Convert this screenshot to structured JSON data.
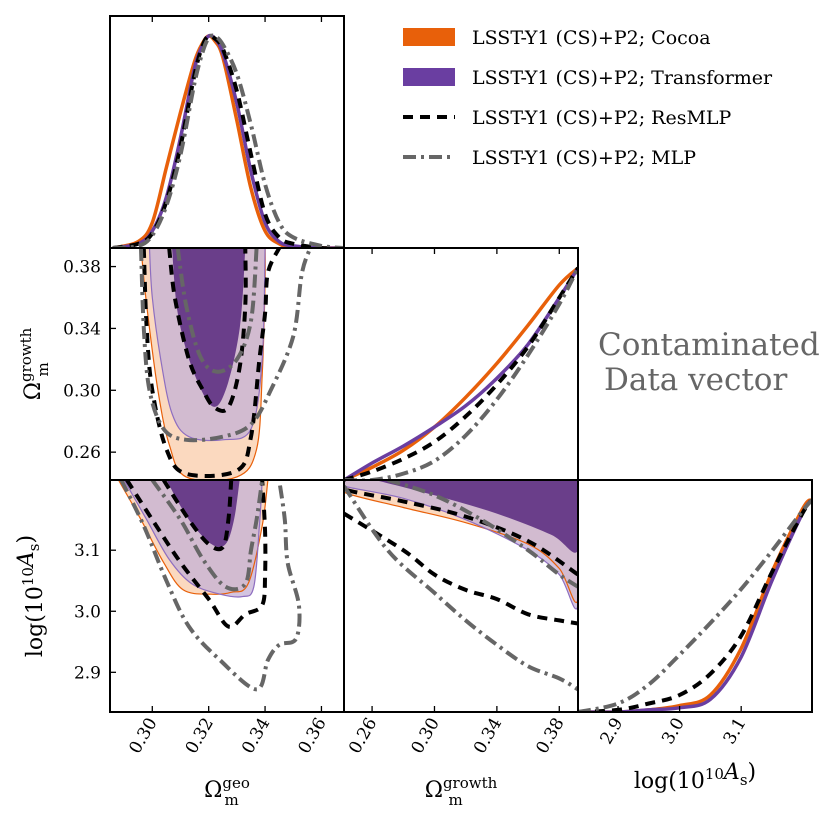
{
  "chart_data": {
    "type": "corner",
    "title": "",
    "annotation": [
      "Contaminated",
      "Data vector"
    ],
    "parameters": [
      {
        "key": "om_geo",
        "label_base": "Ω",
        "label_sub": "m",
        "label_sup": "geo",
        "range": [
          0.285,
          0.368
        ],
        "ticks": [
          "0.30",
          "0.32",
          "0.34",
          "0.36"
        ]
      },
      {
        "key": "om_growth",
        "label_base": "Ω",
        "label_sub": "m",
        "label_sup": "growth",
        "range": [
          0.242,
          0.392
        ],
        "ticks": [
          "0.26",
          "0.30",
          "0.34",
          "0.38"
        ]
      },
      {
        "key": "logAs",
        "label_text": "log(10",
        "label_sup": "10",
        "label_tail": "A",
        "label_sub": "s",
        "label_close": ")",
        "range": [
          2.835,
          3.215
        ],
        "ticks": [
          "2.9",
          "3.0",
          "3.1"
        ]
      }
    ],
    "legend": [
      {
        "name": "LSST-Y1 (CS)+P2; Cocoa",
        "color": "#e8600a",
        "style": "filled"
      },
      {
        "name": "LSST-Y1 (CS)+P2; Transformer",
        "color": "#6a3ea1",
        "style": "filled"
      },
      {
        "name": "LSST-Y1 (CS)+P2; ResMLP",
        "color": "#000000",
        "style": "dashed"
      },
      {
        "name": "LSST-Y1 (CS)+P2; MLP",
        "color": "#666666",
        "style": "dashdot"
      }
    ],
    "marginals": {
      "om_geo": {
        "x": [
          0.286,
          0.295,
          0.3,
          0.305,
          0.31,
          0.315,
          0.318,
          0.32,
          0.322,
          0.325,
          0.33,
          0.335,
          0.34,
          0.345,
          0.35,
          0.36,
          0.368
        ],
        "Cocoa": [
          0.0,
          0.03,
          0.12,
          0.38,
          0.64,
          0.88,
          0.97,
          1.0,
          0.98,
          0.9,
          0.6,
          0.28,
          0.08,
          0.02,
          0.0,
          0.0,
          0.0
        ],
        "Transformer": [
          0.0,
          0.02,
          0.08,
          0.24,
          0.52,
          0.85,
          0.96,
          1.0,
          0.99,
          0.92,
          0.68,
          0.36,
          0.12,
          0.03,
          0.01,
          0.0,
          0.0
        ],
        "ResMLP": [
          0.0,
          0.02,
          0.07,
          0.22,
          0.48,
          0.82,
          0.96,
          1.0,
          0.99,
          0.94,
          0.74,
          0.44,
          0.16,
          0.05,
          0.02,
          0.0,
          0.0
        ],
        "MLP": [
          0.0,
          0.01,
          0.06,
          0.2,
          0.44,
          0.78,
          0.93,
          0.99,
          1.0,
          0.96,
          0.82,
          0.58,
          0.3,
          0.12,
          0.05,
          0.01,
          0.0
        ]
      },
      "om_growth": {
        "x": [
          0.242,
          0.26,
          0.28,
          0.3,
          0.32,
          0.34,
          0.36,
          0.38,
          0.392
        ],
        "Cocoa": [
          0.0,
          0.06,
          0.14,
          0.25,
          0.39,
          0.55,
          0.73,
          0.92,
          1.0
        ],
        "Transformer": [
          0.0,
          0.08,
          0.16,
          0.25,
          0.35,
          0.48,
          0.64,
          0.86,
          1.0
        ],
        "ResMLP": [
          0.0,
          0.04,
          0.1,
          0.18,
          0.3,
          0.45,
          0.63,
          0.86,
          1.0
        ],
        "MLP": [
          0.0,
          0.0,
          0.03,
          0.09,
          0.21,
          0.38,
          0.59,
          0.83,
          1.0
        ]
      },
      "logAs": {
        "x": [
          2.835,
          2.9,
          2.95,
          3.0,
          3.05,
          3.1,
          3.15,
          3.2,
          3.215
        ],
        "Cocoa": [
          0.0,
          0.0,
          0.01,
          0.03,
          0.08,
          0.3,
          0.66,
          0.96,
          1.0
        ],
        "Transformer": [
          0.0,
          0.0,
          0.01,
          0.02,
          0.06,
          0.26,
          0.62,
          0.94,
          1.0
        ],
        "ResMLP": [
          0.0,
          0.01,
          0.04,
          0.08,
          0.18,
          0.36,
          0.66,
          0.94,
          1.0
        ],
        "MLP": [
          0.0,
          0.04,
          0.13,
          0.27,
          0.42,
          0.58,
          0.76,
          0.95,
          1.0
        ]
      }
    },
    "contours_2d": {
      "om_growth_vs_om_geo": {
        "Cocoa_outer": [
          [
            0.296,
            0.392
          ],
          [
            0.298,
            0.355
          ],
          [
            0.302,
            0.3
          ],
          [
            0.306,
            0.265
          ],
          [
            0.312,
            0.244
          ],
          [
            0.33,
            0.244
          ],
          [
            0.337,
            0.262
          ],
          [
            0.339,
            0.31
          ],
          [
            0.34,
            0.37
          ],
          [
            0.34,
            0.392
          ]
        ],
        "Transformer_outer": [
          [
            0.299,
            0.392
          ],
          [
            0.3,
            0.36
          ],
          [
            0.303,
            0.32
          ],
          [
            0.307,
            0.285
          ],
          [
            0.313,
            0.27
          ],
          [
            0.325,
            0.268
          ],
          [
            0.335,
            0.275
          ],
          [
            0.339,
            0.32
          ],
          [
            0.34,
            0.392
          ]
        ],
        "Transformer_inner": [
          [
            0.307,
            0.392
          ],
          [
            0.309,
            0.35
          ],
          [
            0.314,
            0.315
          ],
          [
            0.321,
            0.29
          ],
          [
            0.326,
            0.3
          ],
          [
            0.331,
            0.34
          ],
          [
            0.333,
            0.392
          ]
        ],
        "ResMLP_inner": [
          [
            0.306,
            0.392
          ],
          [
            0.308,
            0.36
          ],
          [
            0.313,
            0.32
          ],
          [
            0.318,
            0.3
          ],
          [
            0.322,
            0.289
          ],
          [
            0.327,
            0.289
          ],
          [
            0.331,
            0.315
          ],
          [
            0.333,
            0.355
          ],
          [
            0.333,
            0.392
          ]
        ],
        "ResMLP_outer": [
          [
            0.297,
            0.392
          ],
          [
            0.298,
            0.34
          ],
          [
            0.3,
            0.3
          ],
          [
            0.305,
            0.262
          ],
          [
            0.312,
            0.246
          ],
          [
            0.33,
            0.248
          ],
          [
            0.335,
            0.27
          ],
          [
            0.338,
            0.32
          ],
          [
            0.34,
            0.35
          ],
          [
            0.341,
            0.376
          ],
          [
            0.345,
            0.392
          ]
        ],
        "MLP_inner": [
          [
            0.309,
            0.392
          ],
          [
            0.312,
            0.355
          ],
          [
            0.317,
            0.322
          ],
          [
            0.323,
            0.312
          ],
          [
            0.33,
            0.32
          ],
          [
            0.335,
            0.345
          ],
          [
            0.337,
            0.392
          ]
        ],
        "MLP_outer": [
          [
            0.296,
            0.392
          ],
          [
            0.297,
            0.34
          ],
          [
            0.299,
            0.3
          ],
          [
            0.304,
            0.275
          ],
          [
            0.312,
            0.268
          ],
          [
            0.325,
            0.27
          ],
          [
            0.335,
            0.278
          ],
          [
            0.342,
            0.3
          ],
          [
            0.35,
            0.335
          ],
          [
            0.353,
            0.375
          ],
          [
            0.356,
            0.392
          ]
        ]
      },
      "logAs_vs_om_geo": {
        "Cocoa_outer": [
          [
            0.288,
            3.215
          ],
          [
            0.296,
            3.15
          ],
          [
            0.304,
            3.08
          ],
          [
            0.311,
            3.035
          ],
          [
            0.321,
            3.028
          ],
          [
            0.328,
            3.031
          ],
          [
            0.334,
            3.045
          ],
          [
            0.339,
            3.14
          ],
          [
            0.341,
            3.215
          ]
        ],
        "Transformer_outer": [
          [
            0.29,
            3.215
          ],
          [
            0.298,
            3.15
          ],
          [
            0.306,
            3.085
          ],
          [
            0.314,
            3.045
          ],
          [
            0.324,
            3.028
          ],
          [
            0.332,
            3.024
          ],
          [
            0.336,
            3.04
          ],
          [
            0.338,
            3.14
          ],
          [
            0.339,
            3.215
          ]
        ],
        "Transformer_inner": [
          [
            0.305,
            3.215
          ],
          [
            0.313,
            3.15
          ],
          [
            0.321,
            3.11
          ],
          [
            0.326,
            3.11
          ],
          [
            0.329,
            3.15
          ],
          [
            0.331,
            3.215
          ]
        ],
        "ResMLP_inner": [
          [
            0.304,
            3.215
          ],
          [
            0.313,
            3.15
          ],
          [
            0.32,
            3.11
          ],
          [
            0.325,
            3.105
          ],
          [
            0.327,
            3.15
          ],
          [
            0.328,
            3.215
          ]
        ],
        "ResMLP_outer": [
          [
            0.291,
            3.215
          ],
          [
            0.3,
            3.15
          ],
          [
            0.31,
            3.08
          ],
          [
            0.32,
            3.02
          ],
          [
            0.327,
            2.975
          ],
          [
            0.333,
            2.995
          ],
          [
            0.339,
            3.01
          ],
          [
            0.34,
            3.06
          ],
          [
            0.34,
            3.13
          ],
          [
            0.339,
            3.215
          ]
        ],
        "MLP_inner": [
          [
            0.3,
            3.215
          ],
          [
            0.31,
            3.15
          ],
          [
            0.318,
            3.085
          ],
          [
            0.326,
            3.04
          ],
          [
            0.333,
            3.045
          ],
          [
            0.335,
            3.1
          ],
          [
            0.337,
            3.15
          ],
          [
            0.339,
            3.215
          ]
        ],
        "MLP_outer": [
          [
            0.289,
            3.215
          ],
          [
            0.297,
            3.14
          ],
          [
            0.305,
            3.05
          ],
          [
            0.313,
            2.975
          ],
          [
            0.324,
            2.92
          ],
          [
            0.337,
            2.872
          ],
          [
            0.341,
            2.92
          ],
          [
            0.345,
            2.945
          ],
          [
            0.351,
            2.955
          ],
          [
            0.352,
            3.01
          ],
          [
            0.348,
            3.08
          ],
          [
            0.347,
            3.15
          ],
          [
            0.345,
            3.215
          ]
        ]
      },
      "logAs_vs_om_growth": {
        "Cocoa_outer": [
          [
            0.242,
            3.215
          ],
          [
            0.242,
            3.195
          ],
          [
            0.28,
            3.17
          ],
          [
            0.32,
            3.145
          ],
          [
            0.36,
            3.11
          ],
          [
            0.38,
            3.07
          ],
          [
            0.392,
            3.02
          ],
          [
            0.392,
            3.215
          ]
        ],
        "Transformer_outer": [
          [
            0.242,
            3.215
          ],
          [
            0.242,
            3.205
          ],
          [
            0.28,
            3.185
          ],
          [
            0.32,
            3.15
          ],
          [
            0.36,
            3.1
          ],
          [
            0.38,
            3.06
          ],
          [
            0.392,
            3.01
          ],
          [
            0.392,
            3.215
          ]
        ],
        "Transformer_inner": [
          [
            0.262,
            3.215
          ],
          [
            0.3,
            3.19
          ],
          [
            0.34,
            3.16
          ],
          [
            0.375,
            3.125
          ],
          [
            0.392,
            3.1
          ],
          [
            0.392,
            3.215
          ]
        ],
        "ResMLP_inner": [
          [
            0.242,
            3.215
          ],
          [
            0.242,
            3.2
          ],
          [
            0.28,
            3.18
          ],
          [
            0.32,
            3.155
          ],
          [
            0.36,
            3.115
          ],
          [
            0.392,
            3.06
          ]
        ],
        "ResMLP_outer": [
          [
            0.242,
            3.16
          ],
          [
            0.28,
            3.1
          ],
          [
            0.3,
            3.06
          ],
          [
            0.32,
            3.035
          ],
          [
            0.34,
            3.02
          ],
          [
            0.36,
            2.995
          ],
          [
            0.38,
            2.985
          ],
          [
            0.392,
            2.98
          ]
        ],
        "MLP_inner": [
          [
            0.27,
            3.215
          ],
          [
            0.3,
            3.19
          ],
          [
            0.33,
            3.15
          ],
          [
            0.36,
            3.1
          ],
          [
            0.38,
            3.06
          ],
          [
            0.392,
            3.04
          ]
        ],
        "MLP_outer": [
          [
            0.242,
            3.205
          ],
          [
            0.27,
            3.1
          ],
          [
            0.3,
            3.03
          ],
          [
            0.32,
            2.985
          ],
          [
            0.34,
            2.945
          ],
          [
            0.36,
            2.91
          ],
          [
            0.38,
            2.89
          ],
          [
            0.392,
            2.872
          ]
        ]
      }
    }
  }
}
